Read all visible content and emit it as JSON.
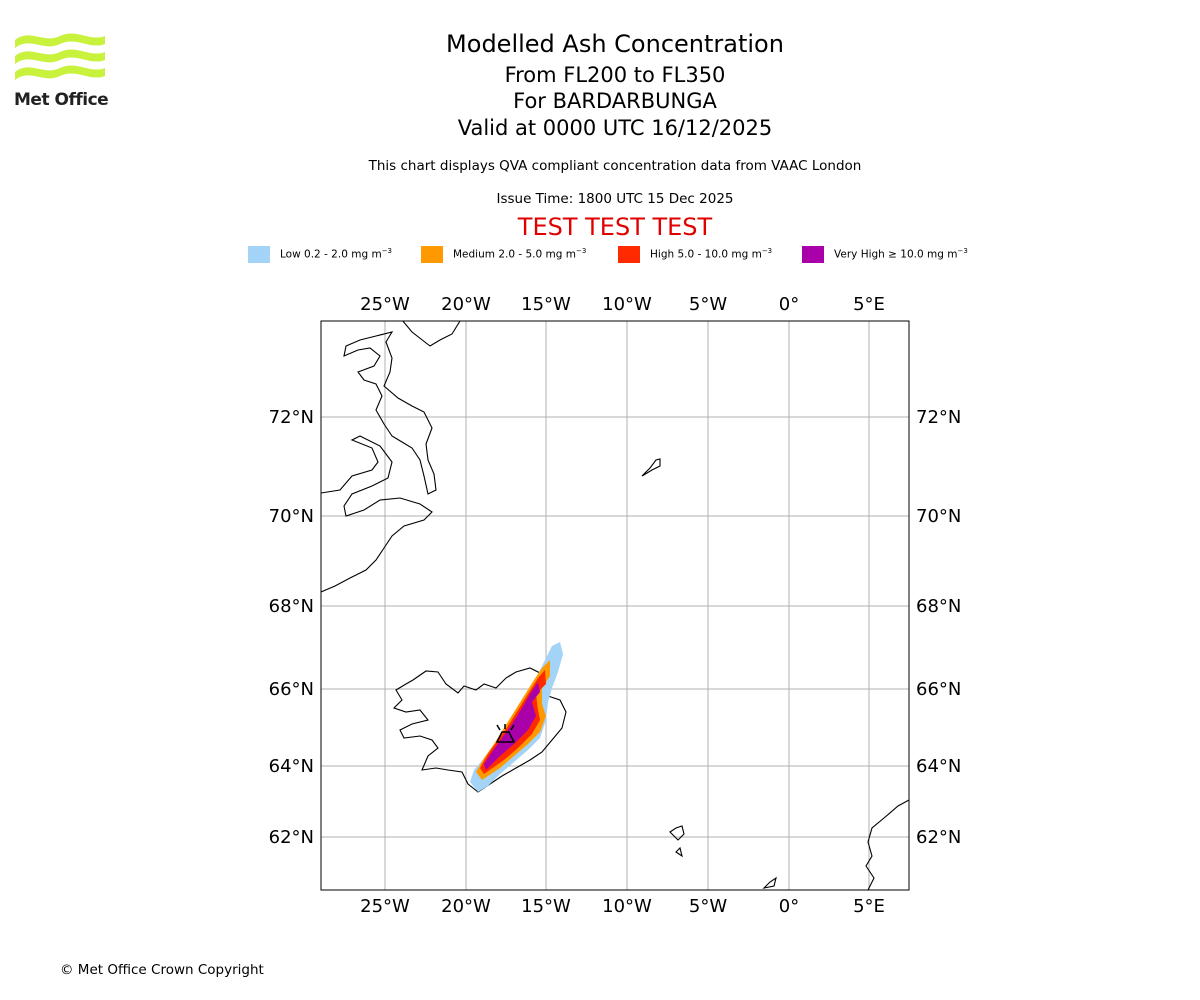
{
  "header": {
    "title": "Modelled Ash Concentration",
    "levels": "From FL200 to FL350",
    "volcano": "For BARDARBUNGA",
    "valid": "Valid at 0000 UTC 16/12/2025",
    "disclaimer": "This chart displays QVA compliant concentration data from VAAC London",
    "issue_time": "Issue Time: 1800 UTC 15 Dec 2025",
    "test_banner": "TEST TEST TEST"
  },
  "logo": {
    "text": "Met Office",
    "color": "#c8f23c"
  },
  "legend": [
    {
      "label_prefix": "Low 0.2 - 2.0 mg m",
      "sup": "−3",
      "color": "#a3d4f8"
    },
    {
      "label_prefix": "Medium 2.0 - 5.0 mg m",
      "sup": "−3",
      "color": "#ff9900"
    },
    {
      "label_prefix": "High 5.0 - 10.0 mg m",
      "sup": "−3",
      "color": "#ff2a00"
    },
    {
      "label_prefix": "Very High  ≥  10.0 mg m",
      "sup": "−3",
      "color": "#aa00aa"
    }
  ],
  "map": {
    "lon_ticks": [
      "25°W",
      "20°W",
      "15°W",
      "10°W",
      "5°W",
      "0°",
      "5°E"
    ],
    "lat_ticks": [
      "72°N",
      "70°N",
      "68°N",
      "66°N",
      "64°N",
      "62°N"
    ],
    "grid_color": "#b0b0b0"
  },
  "footer": {
    "copyright": "© Met Office Crown Copyright"
  }
}
